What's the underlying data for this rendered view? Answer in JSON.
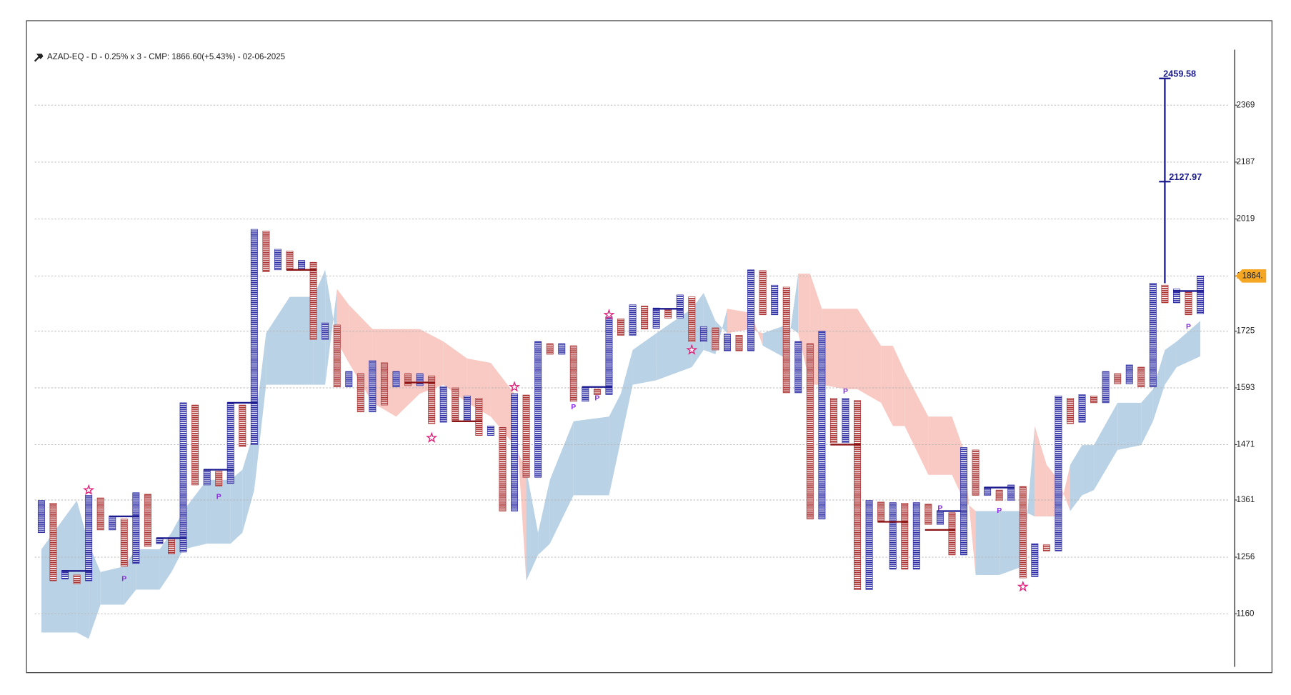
{
  "chart_data": {
    "type": "pnf",
    "title": "AZAD-EQ - D - 0.25% x 3 - CMP: 1866.60(+5.43%) - 02-06-2025",
    "log_scale": true,
    "grid": true,
    "ylim": [
      1078,
      2561
    ],
    "yticks": [
      1160,
      1256,
      1361,
      1471,
      1593,
      1725,
      1864,
      2019,
      2187,
      2369
    ],
    "x_color": "#2d2da4",
    "o_color": "#ab3434",
    "columns": [
      {
        "type": "X",
        "high": 1360,
        "low": 1300
      },
      {
        "type": "O",
        "high": 1355,
        "low": 1215
      },
      {
        "type": "X",
        "high": 1233,
        "low": 1218
      },
      {
        "type": "O",
        "high": 1225,
        "low": 1210
      },
      {
        "type": "X",
        "high": 1370,
        "low": 1215
      },
      {
        "type": "O",
        "high": 1365,
        "low": 1305
      },
      {
        "type": "X",
        "high": 1330,
        "low": 1305
      },
      {
        "type": "O",
        "high": 1325,
        "low": 1240
      },
      {
        "type": "X",
        "high": 1375,
        "low": 1245
      },
      {
        "type": "O",
        "high": 1372,
        "low": 1275
      },
      {
        "type": "X",
        "high": 1290,
        "low": 1280
      },
      {
        "type": "O",
        "high": 1288,
        "low": 1262
      },
      {
        "type": "X",
        "high": 1560,
        "low": 1265
      },
      {
        "type": "O",
        "high": 1555,
        "low": 1390
      },
      {
        "type": "X",
        "high": 1420,
        "low": 1390
      },
      {
        "type": "O",
        "high": 1417,
        "low": 1388
      },
      {
        "type": "X",
        "high": 1560,
        "low": 1393
      },
      {
        "type": "O",
        "high": 1555,
        "low": 1467
      },
      {
        "type": "X",
        "high": 1990,
        "low": 1471
      },
      {
        "type": "O",
        "high": 1985,
        "low": 1875
      },
      {
        "type": "X",
        "high": 1935,
        "low": 1880
      },
      {
        "type": "O",
        "high": 1930,
        "low": 1880
      },
      {
        "type": "X",
        "high": 1905,
        "low": 1880
      },
      {
        "type": "O",
        "high": 1900,
        "low": 1705
      },
      {
        "type": "X",
        "high": 1745,
        "low": 1705
      },
      {
        "type": "O",
        "high": 1740,
        "low": 1595
      },
      {
        "type": "X",
        "high": 1630,
        "low": 1595
      },
      {
        "type": "O",
        "high": 1625,
        "low": 1540
      },
      {
        "type": "X",
        "high": 1655,
        "low": 1540
      },
      {
        "type": "O",
        "high": 1650,
        "low": 1555
      },
      {
        "type": "X",
        "high": 1630,
        "low": 1595
      },
      {
        "type": "O",
        "high": 1625,
        "low": 1598
      },
      {
        "type": "X",
        "high": 1625,
        "low": 1598
      },
      {
        "type": "O",
        "high": 1620,
        "low": 1515
      },
      {
        "type": "X",
        "high": 1596,
        "low": 1518
      },
      {
        "type": "O",
        "high": 1593,
        "low": 1520
      },
      {
        "type": "X",
        "high": 1575,
        "low": 1520
      },
      {
        "type": "O",
        "high": 1570,
        "low": 1490
      },
      {
        "type": "X",
        "high": 1510,
        "low": 1490
      },
      {
        "type": "O",
        "high": 1507,
        "low": 1340
      },
      {
        "type": "X",
        "high": 1580,
        "low": 1340
      },
      {
        "type": "O",
        "high": 1577,
        "low": 1405
      },
      {
        "type": "X",
        "high": 1700,
        "low": 1405
      },
      {
        "type": "O",
        "high": 1695,
        "low": 1670
      },
      {
        "type": "X",
        "high": 1695,
        "low": 1670
      },
      {
        "type": "O",
        "high": 1690,
        "low": 1563
      },
      {
        "type": "X",
        "high": 1595,
        "low": 1563
      },
      {
        "type": "O",
        "high": 1590,
        "low": 1578
      },
      {
        "type": "X",
        "high": 1760,
        "low": 1578
      },
      {
        "type": "O",
        "high": 1755,
        "low": 1715
      },
      {
        "type": "X",
        "high": 1790,
        "low": 1715
      },
      {
        "type": "O",
        "high": 1787,
        "low": 1730
      },
      {
        "type": "X",
        "high": 1782,
        "low": 1732
      },
      {
        "type": "O",
        "high": 1778,
        "low": 1757
      },
      {
        "type": "X",
        "high": 1815,
        "low": 1757
      },
      {
        "type": "O",
        "high": 1810,
        "low": 1700
      },
      {
        "type": "X",
        "high": 1736,
        "low": 1700
      },
      {
        "type": "O",
        "high": 1733,
        "low": 1680
      },
      {
        "type": "X",
        "high": 1718,
        "low": 1678
      },
      {
        "type": "O",
        "high": 1715,
        "low": 1678
      },
      {
        "type": "X",
        "high": 1880,
        "low": 1678
      },
      {
        "type": "O",
        "high": 1878,
        "low": 1765
      },
      {
        "type": "X",
        "high": 1840,
        "low": 1765
      },
      {
        "type": "O",
        "high": 1835,
        "low": 1582
      },
      {
        "type": "X",
        "high": 1700,
        "low": 1582
      },
      {
        "type": "O",
        "high": 1695,
        "low": 1325
      },
      {
        "type": "X",
        "high": 1725,
        "low": 1325
      },
      {
        "type": "O",
        "high": 1570,
        "low": 1475
      },
      {
        "type": "X",
        "high": 1570,
        "low": 1475
      },
      {
        "type": "O",
        "high": 1565,
        "low": 1200
      },
      {
        "type": "X",
        "high": 1360,
        "low": 1200
      },
      {
        "type": "O",
        "high": 1357,
        "low": 1320
      },
      {
        "type": "X",
        "high": 1356,
        "low": 1235
      },
      {
        "type": "O",
        "high": 1355,
        "low": 1235
      },
      {
        "type": "X",
        "high": 1356,
        "low": 1235
      },
      {
        "type": "O",
        "high": 1353,
        "low": 1315
      },
      {
        "type": "X",
        "high": 1340,
        "low": 1315
      },
      {
        "type": "O",
        "high": 1337,
        "low": 1260
      },
      {
        "type": "X",
        "high": 1465,
        "low": 1260
      },
      {
        "type": "O",
        "high": 1460,
        "low": 1370
      },
      {
        "type": "X",
        "high": 1385,
        "low": 1370
      },
      {
        "type": "O",
        "high": 1380,
        "low": 1360
      },
      {
        "type": "X",
        "high": 1390,
        "low": 1360
      },
      {
        "type": "O",
        "high": 1387,
        "low": 1220
      },
      {
        "type": "X",
        "high": 1280,
        "low": 1222
      },
      {
        "type": "O",
        "high": 1278,
        "low": 1267
      },
      {
        "type": "X",
        "high": 1575,
        "low": 1267
      },
      {
        "type": "O",
        "high": 1570,
        "low": 1515
      },
      {
        "type": "X",
        "high": 1578,
        "low": 1518
      },
      {
        "type": "O",
        "high": 1575,
        "low": 1560
      },
      {
        "type": "X",
        "high": 1630,
        "low": 1560
      },
      {
        "type": "O",
        "high": 1625,
        "low": 1602
      },
      {
        "type": "X",
        "high": 1645,
        "low": 1602
      },
      {
        "type": "O",
        "high": 1640,
        "low": 1595
      },
      {
        "type": "X",
        "high": 1845,
        "low": 1595
      },
      {
        "type": "O",
        "high": 1840,
        "low": 1795
      },
      {
        "type": "X",
        "high": 1830,
        "low": 1795
      },
      {
        "type": "O",
        "high": 1825,
        "low": 1765
      },
      {
        "type": "X",
        "high": 1864,
        "low": 1768
      }
    ],
    "cloud": {
      "up_color": "#bad2e5",
      "down_color": "#f9c9c3",
      "x": [
        0,
        3,
        4,
        5,
        7,
        8,
        10,
        11,
        12,
        14,
        16,
        17,
        18,
        19,
        21,
        23,
        24,
        25,
        26,
        28,
        30,
        32,
        34,
        36,
        38,
        40,
        41,
        42,
        43,
        45,
        48,
        49,
        50,
        52,
        55,
        56,
        57,
        58,
        60,
        61,
        63,
        64,
        65,
        66,
        68,
        69,
        71,
        72,
        73,
        75,
        77,
        78,
        79,
        81,
        83,
        84,
        85,
        86,
        87,
        88,
        89,
        91,
        93,
        94,
        95,
        96,
        98
      ],
      "span_a": [
        1270,
        1360,
        1280,
        1230,
        1240,
        1270,
        1270,
        1300,
        1340,
        1400,
        1400,
        1420,
        1500,
        1720,
        1810,
        1810,
        1880,
        1700,
        1650,
        1560,
        1530,
        1580,
        1600,
        1560,
        1530,
        1470,
        1420,
        1300,
        1400,
        1520,
        1530,
        1580,
        1680,
        1720,
        1780,
        1820,
        1750,
        1720,
        1730,
        1720,
        1740,
        1720,
        1600,
        1600,
        1590,
        1590,
        1560,
        1510,
        1510,
        1410,
        1410,
        1360,
        1340,
        1340,
        1340,
        1330,
        1330,
        1330,
        1430,
        1470,
        1470,
        1560,
        1560,
        1590,
        1680,
        1700,
        1750
      ],
      "span_b": [
        1130,
        1130,
        1120,
        1175,
        1175,
        1200,
        1200,
        1230,
        1270,
        1280,
        1280,
        1300,
        1380,
        1600,
        1600,
        1600,
        1600,
        1830,
        1790,
        1730,
        1730,
        1730,
        1700,
        1660,
        1650,
        1580,
        1215,
        1260,
        1280,
        1370,
        1370,
        1480,
        1600,
        1610,
        1640,
        1680,
        1670,
        1780,
        1770,
        1690,
        1660,
        1870,
        1870,
        1780,
        1780,
        1780,
        1690,
        1690,
        1630,
        1530,
        1530,
        1460,
        1225,
        1225,
        1240,
        1510,
        1430,
        1400,
        1340,
        1370,
        1380,
        1460,
        1470,
        1520,
        1600,
        1640,
        1665
      ]
    },
    "levels": [
      {
        "from": 2,
        "to": 4,
        "value": 1232,
        "color": "#1b1b8f"
      },
      {
        "from": 6,
        "to": 8,
        "value": 1330,
        "color": "#1b1b8f"
      },
      {
        "from": 10,
        "to": 12,
        "value": 1290,
        "color": "#1b1b8f"
      },
      {
        "from": 14,
        "to": 16,
        "value": 1420,
        "color": "#1b1b8f"
      },
      {
        "from": 16,
        "to": 18,
        "value": 1560,
        "color": "#1b1b8f"
      },
      {
        "from": 46,
        "to": 48,
        "value": 1595,
        "color": "#1b1b8f"
      },
      {
        "from": 52,
        "to": 54,
        "value": 1780,
        "color": "#1b1b8f"
      },
      {
        "from": 76,
        "to": 78,
        "value": 1340,
        "color": "#1b1b8f"
      },
      {
        "from": 80,
        "to": 82,
        "value": 1385,
        "color": "#1b1b8f"
      },
      {
        "from": 96,
        "to": 98,
        "value": 1825,
        "color": "#1b1b8f"
      },
      {
        "from": 21,
        "to": 23,
        "value": 1880,
        "color": "#8b1414"
      },
      {
        "from": 31,
        "to": 33,
        "value": 1605,
        "color": "#8b1414"
      },
      {
        "from": 35,
        "to": 37,
        "value": 1520,
        "color": "#8b1414"
      },
      {
        "from": 67,
        "to": 69,
        "value": 1471,
        "color": "#8b1414"
      },
      {
        "from": 71,
        "to": 73,
        "value": 1320,
        "color": "#8b1414"
      },
      {
        "from": 75,
        "to": 77,
        "value": 1305,
        "color": "#8b1414"
      }
    ],
    "pattern_labels": [
      {
        "x": 7,
        "y": 1218,
        "label": "P"
      },
      {
        "x": 15,
        "y": 1367,
        "label": "P"
      },
      {
        "x": 45,
        "y": 1550,
        "label": "P"
      },
      {
        "x": 47,
        "y": 1570,
        "label": "P"
      },
      {
        "x": 68,
        "y": 1585,
        "label": "P"
      },
      {
        "x": 76,
        "y": 1345,
        "label": "P"
      },
      {
        "x": 81,
        "y": 1340,
        "label": "P"
      },
      {
        "x": 97,
        "y": 1735,
        "label": "P"
      }
    ],
    "stars": [
      {
        "x": 4,
        "y": 1380
      },
      {
        "x": 33,
        "y": 1485
      },
      {
        "x": 40,
        "y": 1595
      },
      {
        "x": 48,
        "y": 1765
      },
      {
        "x": 55,
        "y": 1680
      },
      {
        "x": 83,
        "y": 1205
      }
    ],
    "target": {
      "x": 95,
      "from": 1845,
      "values": [
        2459.58,
        2127.97
      ],
      "color": "#1b1b8f"
    },
    "last_price": {
      "value": 1864,
      "label": "1864.",
      "color": "#f5a623"
    }
  }
}
